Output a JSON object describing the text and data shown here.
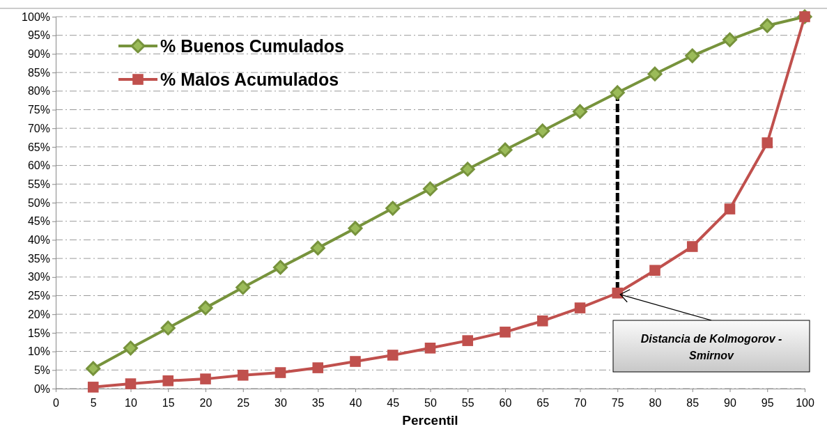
{
  "chart_data": {
    "type": "line",
    "xlabel": "Percentil",
    "x": [
      5,
      10,
      15,
      20,
      25,
      30,
      35,
      40,
      45,
      50,
      55,
      60,
      65,
      70,
      75,
      80,
      85,
      90,
      95,
      100
    ],
    "series": [
      {
        "name": "% Buenos Cumulados",
        "color": "#77933c",
        "marker": "diamond",
        "values": [
          5.4,
          10.9,
          16.3,
          21.7,
          27.2,
          32.6,
          37.8,
          43.1,
          48.5,
          53.7,
          59.0,
          64.2,
          69.3,
          74.5,
          79.6,
          84.6,
          89.5,
          93.8,
          97.6,
          100
        ]
      },
      {
        "name": "% Malos Acumulados",
        "color": "#c0504d",
        "marker": "square",
        "values": [
          0.4,
          1.3,
          2.1,
          2.6,
          3.6,
          4.3,
          5.6,
          7.3,
          9.0,
          10.9,
          12.9,
          15.2,
          18.2,
          21.7,
          25.7,
          31.8,
          38.2,
          48.3,
          66.1,
          100
        ]
      }
    ],
    "xlim": [
      0,
      100
    ],
    "xticks": [
      0,
      5,
      10,
      15,
      20,
      25,
      30,
      35,
      40,
      45,
      50,
      55,
      60,
      65,
      70,
      75,
      80,
      85,
      90,
      95,
      100
    ],
    "ylim": [
      0,
      100
    ],
    "yticks": [
      {
        "value": 0,
        "label": "0%"
      },
      {
        "value": 5,
        "label": "5%"
      },
      {
        "value": 10,
        "label": "10%"
      },
      {
        "value": 15,
        "label": "15%"
      },
      {
        "value": 20,
        "label": "20%"
      },
      {
        "value": 25,
        "label": "25%"
      },
      {
        "value": 30,
        "label": "30%"
      },
      {
        "value": 35,
        "label": "35%"
      },
      {
        "value": 40,
        "label": "40%"
      },
      {
        "value": 45,
        "label": "45%"
      },
      {
        "value": 50,
        "label": "50%"
      },
      {
        "value": 55,
        "label": "55%"
      },
      {
        "value": 60,
        "label": "60%"
      },
      {
        "value": 65,
        "label": "65%"
      },
      {
        "value": 70,
        "label": "70%"
      },
      {
        "value": 75,
        "label": "75%"
      },
      {
        "value": 80,
        "label": "80%"
      },
      {
        "value": 85,
        "label": "85%"
      },
      {
        "value": 90,
        "label": "90%"
      },
      {
        "value": 95,
        "label": "95%"
      },
      {
        "value": 100,
        "label": "100%"
      }
    ],
    "grid": "y",
    "legend": "top left",
    "annotations": [
      {
        "text": "Distancia de Kolmogorov - Smirnov",
        "x": 75,
        "y": 25.7
      }
    ]
  }
}
